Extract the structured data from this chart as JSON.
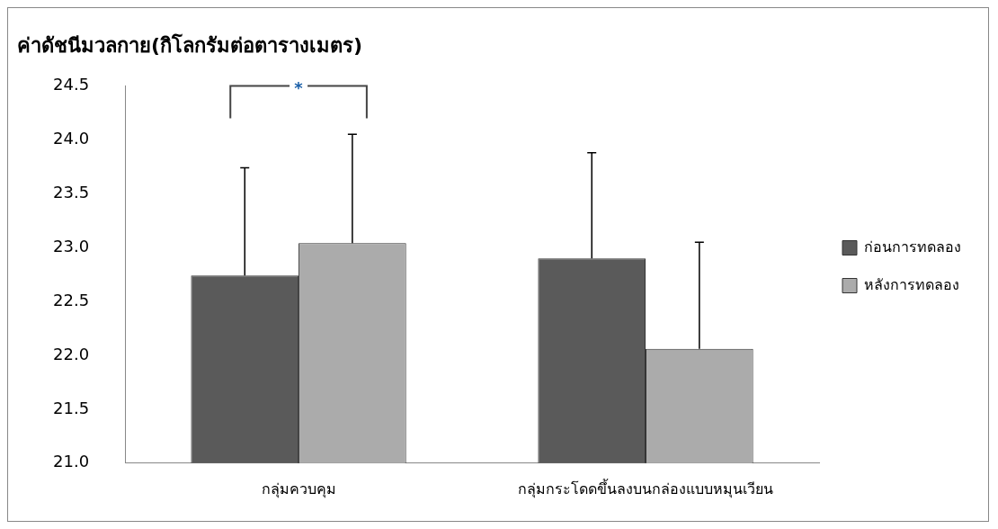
{
  "chart_data": {
    "type": "bar",
    "title": "ค่าดัชนีมวลกาย(กิโลกรัมต่อตารางเมตร)",
    "categories": [
      "กลุ่มควบคุม",
      "กลุ่มกระโดดขึ้นลงบนกล่องแบบหมุนเวียน"
    ],
    "series": [
      {
        "name": "ก่อนการทดลอง",
        "color": "#5a5a5a",
        "values": [
          22.74,
          22.9
        ],
        "errors": [
          [
            22.74,
            23.74
          ],
          [
            22.9,
            23.88
          ]
        ]
      },
      {
        "name": "หลังการทดลอง",
        "color": "#ababab",
        "values": [
          23.04,
          22.06
        ],
        "errors": [
          [
            23.04,
            24.05
          ],
          [
            22.06,
            23.05
          ]
        ]
      }
    ],
    "ylim": [
      21,
      24.5
    ],
    "yticks": [
      {
        "value": 21,
        "label": "21.0"
      },
      21.5,
      {
        "value": 22,
        "label": "22.0"
      },
      22.5,
      {
        "value": 23,
        "label": "23.0"
      },
      23.5,
      {
        "value": 24,
        "label": "24.0"
      },
      24.5
    ],
    "annotations": [
      "*"
    ],
    "grid": false,
    "legend": "right"
  }
}
